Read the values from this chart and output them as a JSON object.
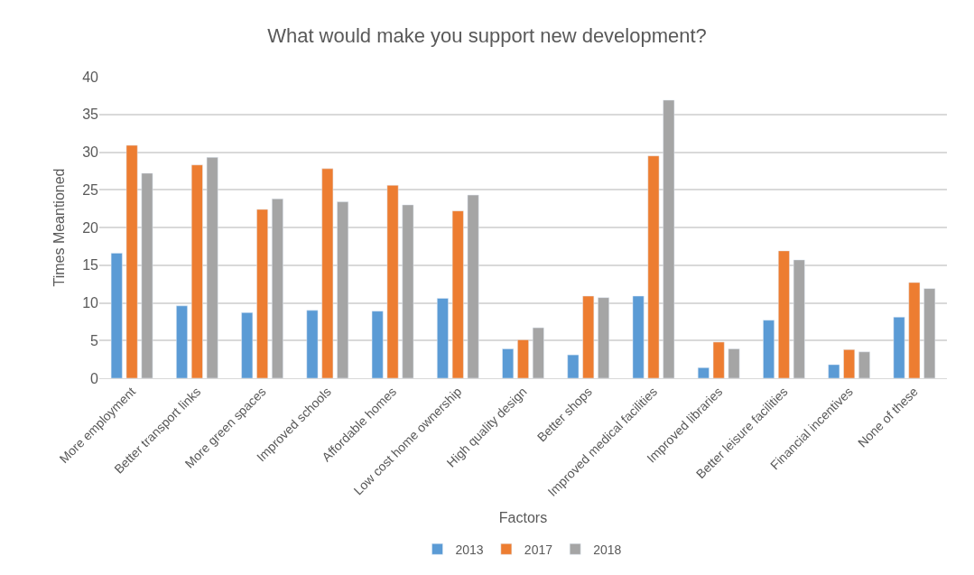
{
  "chart_data": {
    "type": "bar",
    "title": "What would make you support new development?",
    "xlabel": "Factors",
    "ylabel": "Times Meantioned",
    "categories": [
      "More employment",
      "Better transport links",
      "More green spaces",
      "Improved schools",
      "Affordable homes",
      "Low cost home ownership",
      "High quality design",
      "Better shops",
      "Improved medical facilities",
      "Improved libraries",
      "Better leisure facilities",
      "Financial incentives",
      "None of these"
    ],
    "series": [
      {
        "name": "2013",
        "color": "#5b9bd5",
        "values": [
          16.6,
          9.6,
          8.7,
          9.0,
          8.9,
          10.6,
          3.9,
          3.1,
          10.9,
          1.4,
          7.7,
          1.8,
          8.1
        ]
      },
      {
        "name": "2017",
        "color": "#ed7d31",
        "values": [
          30.9,
          28.3,
          22.4,
          27.8,
          25.6,
          22.2,
          5.1,
          10.9,
          29.5,
          4.8,
          16.9,
          3.8,
          12.7
        ]
      },
      {
        "name": "2018",
        "color": "#a5a5a5",
        "values": [
          27.2,
          29.3,
          23.8,
          23.4,
          23.0,
          24.3,
          6.7,
          10.7,
          36.9,
          3.9,
          15.7,
          3.5,
          11.9
        ]
      }
    ],
    "ylim": [
      0,
      40
    ],
    "yticks": [
      0,
      5,
      10,
      15,
      20,
      25,
      30,
      35,
      40
    ],
    "grid": "y",
    "legend": "bottom"
  }
}
